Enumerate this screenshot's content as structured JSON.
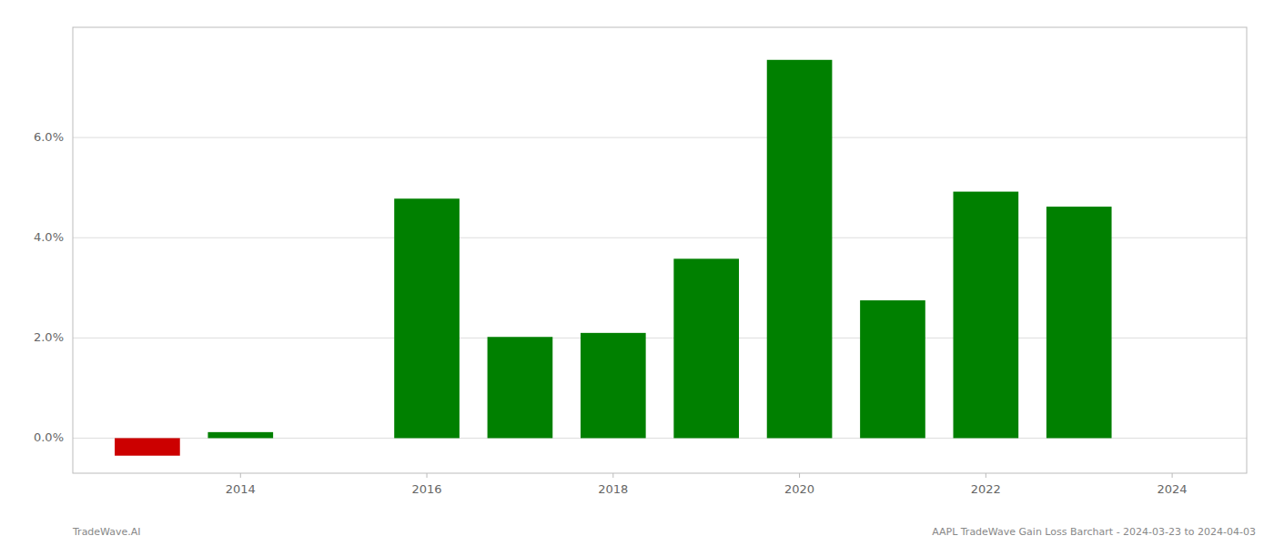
{
  "chart_data": {
    "type": "bar",
    "x": [
      2013,
      2014,
      2015,
      2016,
      2017,
      2018,
      2019,
      2020,
      2021,
      2022,
      2023
    ],
    "values": [
      -0.0035,
      0.0012,
      0.0,
      0.0478,
      0.0202,
      0.021,
      0.0358,
      0.0755,
      0.0275,
      0.0492,
      0.0462
    ],
    "colors": [
      "#cc0000",
      "#008000",
      "#008000",
      "#008000",
      "#008000",
      "#008000",
      "#008000",
      "#008000",
      "#008000",
      "#008000",
      "#008000"
    ],
    "xlim": [
      2012.2,
      2024.8
    ],
    "xticks": [
      2014,
      2016,
      2018,
      2020,
      2022,
      2024
    ],
    "ylim": [
      -0.007,
      0.082
    ],
    "yticks": [
      {
        "value": 0.0,
        "label": "0.0%"
      },
      {
        "value": 0.02,
        "label": "2.0%"
      },
      {
        "value": 0.04,
        "label": "4.0%"
      },
      {
        "value": 0.06,
        "label": "6.0%"
      }
    ],
    "grid": true,
    "annotations": [
      "TradeWave.AI",
      "AAPL TradeWave Gain Loss Barchart - 2024-03-23 to 2024-04-03"
    ]
  }
}
